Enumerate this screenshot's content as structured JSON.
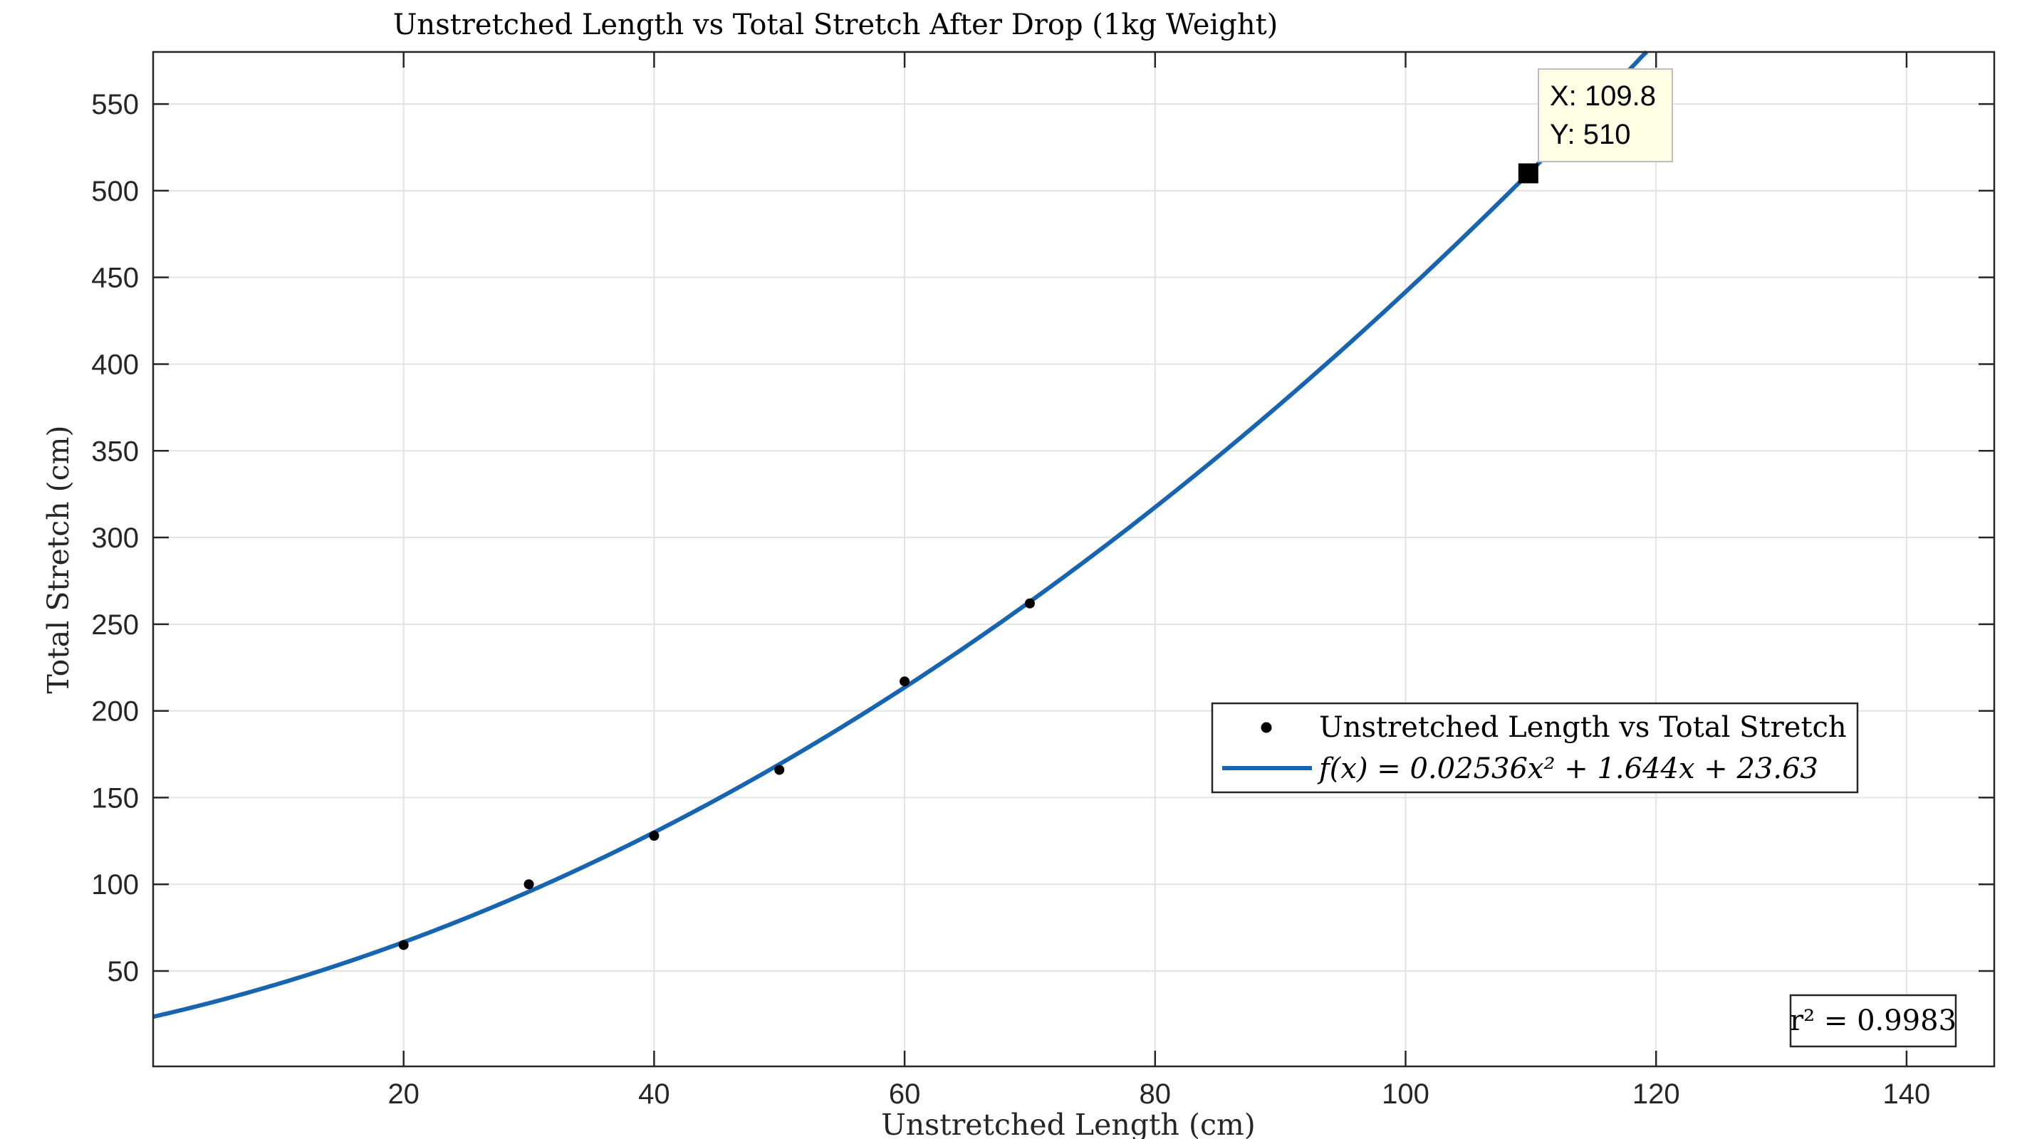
{
  "chart_data": {
    "type": "scatter",
    "title": "Unstretched Length vs Total Stretch After Drop (1kg Weight)",
    "xlabel": "Unstretched Length (cm)",
    "ylabel": "Total Stretch (cm)",
    "xlim": [
      0,
      147
    ],
    "ylim": [
      -5,
      580
    ],
    "xticks": [
      20,
      40,
      60,
      80,
      100,
      120,
      140
    ],
    "yticks": [
      50,
      100,
      150,
      200,
      250,
      300,
      350,
      400,
      450,
      500,
      550
    ],
    "grid": true,
    "legend_position": "right-middle",
    "series": [
      {
        "name": "Unstretched Length vs Total Stretch",
        "kind": "scatter",
        "color": "#000000",
        "points": [
          {
            "x": 20,
            "y": 65
          },
          {
            "x": 30,
            "y": 100
          },
          {
            "x": 40,
            "y": 128
          },
          {
            "x": 50,
            "y": 166
          },
          {
            "x": 60,
            "y": 217
          },
          {
            "x": 70,
            "y": 262
          }
        ]
      },
      {
        "name": "f(x) = 0.02536x² + 1.644x + 23.63",
        "kind": "fit",
        "color": "#1764b0",
        "coefficients": {
          "a": 0.02536,
          "b": 1.644,
          "c": 23.63
        }
      }
    ],
    "datatip": {
      "x": 109.8,
      "y": 510,
      "x_label": "X: 109.8",
      "y_label": "Y: 510"
    },
    "annotation": "r² = 0.9983"
  }
}
